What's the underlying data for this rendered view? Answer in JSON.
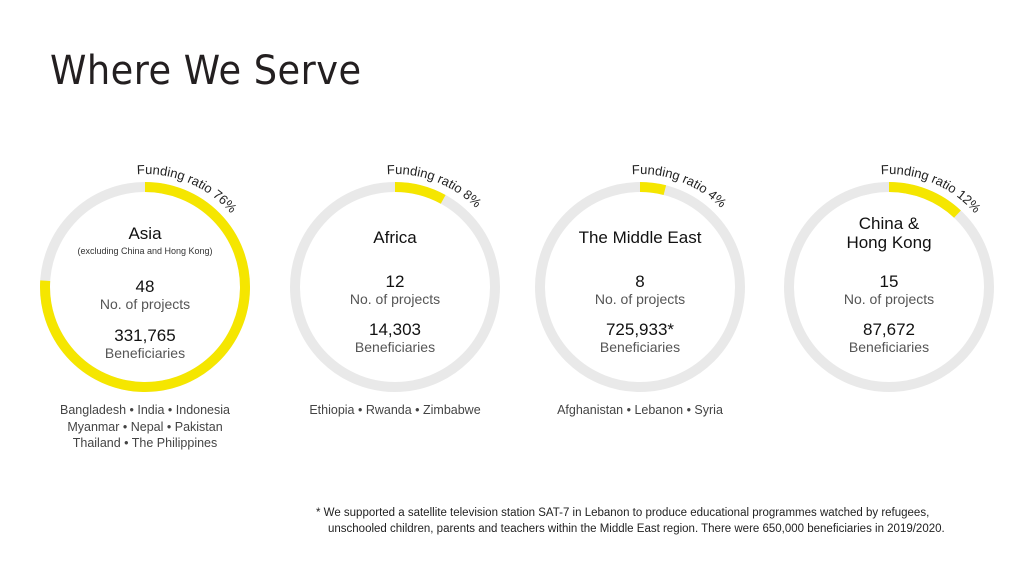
{
  "title": "Where We Serve",
  "colors": {
    "accent": "#f5e600",
    "track": "#e9e9e9"
  },
  "chart_data": {
    "type": "pie",
    "title": "Where We Serve",
    "regions": [
      {
        "name": "Asia",
        "subtitle": "(excluding China and Hong Kong)",
        "funding_ratio": 76,
        "funding_label": "Funding ratio 76%",
        "projects": "48",
        "projects_label": "No. of projects",
        "beneficiaries": "331,765",
        "beneficiaries_label": "Beneficiaries",
        "countries": [
          "Bangladesh • India • Indonesia",
          "Myanmar • Nepal • Pakistan",
          "Thailand • The Philippines"
        ]
      },
      {
        "name": "Africa",
        "subtitle": "",
        "funding_ratio": 8,
        "funding_label": "Funding ratio 8%",
        "projects": "12",
        "projects_label": "No. of projects",
        "beneficiaries": "14,303",
        "beneficiaries_label": "Beneficiaries",
        "countries": [
          "Ethiopia • Rwanda • Zimbabwe"
        ]
      },
      {
        "name": "The Middle East",
        "subtitle": "",
        "funding_ratio": 4,
        "funding_label": "Funding ratio 4%",
        "projects": "8",
        "projects_label": "No. of projects",
        "beneficiaries": "725,933*",
        "beneficiaries_label": "Beneficiaries",
        "countries": [
          "Afghanistan • Lebanon • Syria"
        ]
      },
      {
        "name": "China &\nHong Kong",
        "subtitle": "",
        "funding_ratio": 12,
        "funding_label": "Funding ratio 12%",
        "projects": "15",
        "projects_label": "No. of projects",
        "beneficiaries": "87,672",
        "beneficiaries_label": "Beneficiaries",
        "countries": []
      }
    ]
  },
  "footnote": [
    "* We supported a satellite television station SAT-7 in Lebanon to produce educational programmes watched by refugees,",
    "unschooled children, parents and teachers within the Middle East region. There were 650,000 beneficiaries in 2019/2020."
  ]
}
